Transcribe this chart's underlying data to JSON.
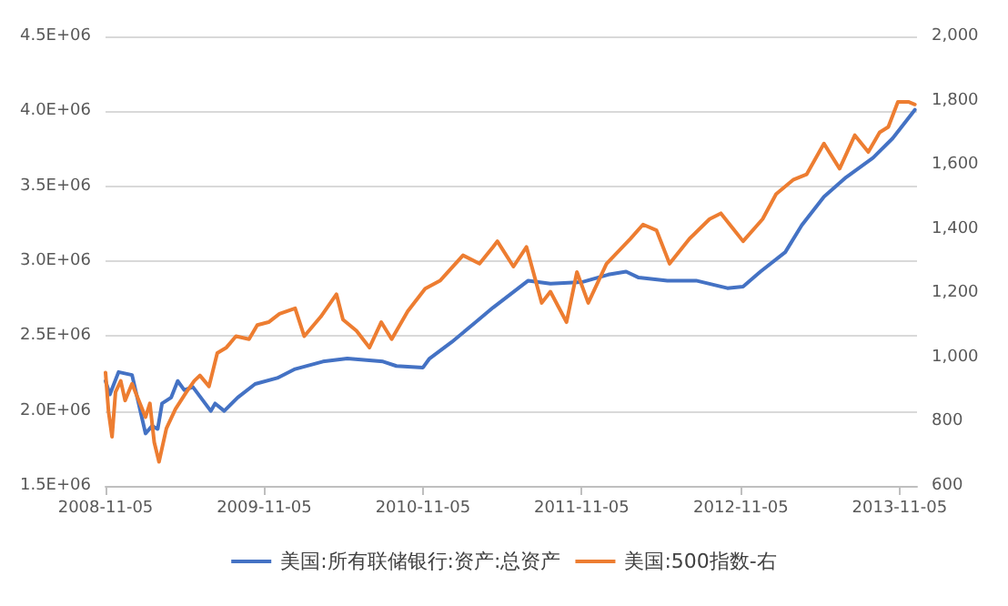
{
  "chart_data": {
    "type": "line",
    "xlim": [
      "2008-11-05",
      "2013-12-15"
    ],
    "xticks": [
      "2008-11-05",
      "2009-11-05",
      "2010-11-05",
      "2011-11-05",
      "2012-11-05",
      "2013-11-05"
    ],
    "ylim": [
      1500000,
      4500000
    ],
    "yticks": [
      {
        "value": 1500000,
        "label": "1.5E+06"
      },
      {
        "value": 2000000,
        "label": "2.0E+06"
      },
      {
        "value": 2500000,
        "label": "2.5E+06"
      },
      {
        "value": 3000000,
        "label": "3.0E+06"
      },
      {
        "value": 3500000,
        "label": "3.5E+06"
      },
      {
        "value": 4000000,
        "label": "4.0E+06"
      },
      {
        "value": 4500000,
        "label": "4.5E+06"
      }
    ],
    "y2lim": [
      600,
      2000
    ],
    "y2ticks": [
      600,
      800,
      {
        "value": 1000,
        "label": "1,000"
      },
      {
        "value": 1200,
        "label": "1,200"
      },
      {
        "value": 1400,
        "label": "1,400"
      },
      {
        "value": 1600,
        "label": "1,600"
      },
      {
        "value": 1800,
        "label": "1,800"
      },
      {
        "value": 2000,
        "label": "2,000"
      }
    ],
    "grid": "y",
    "legend": "bottom",
    "marker": "none",
    "line_style": "solid",
    "series": [
      {
        "name": "美国:所有联储银行:资产:总资产",
        "color": "#4472c4",
        "x": [
          "2008-11-05",
          "2008-11-15",
          "2008-12-05",
          "2009-01-05",
          "2009-02-05",
          "2009-02-20",
          "2009-03-05",
          "2009-03-15",
          "2009-04-05",
          "2009-04-20",
          "2009-05-05",
          "2009-05-25",
          "2009-07-05",
          "2009-07-15",
          "2009-08-05",
          "2009-09-05",
          "2009-10-15",
          "2009-12-05",
          "2010-01-15",
          "2010-03-20",
          "2010-05-15",
          "2010-08-05",
          "2010-09-05",
          "2010-11-05",
          "2010-11-20",
          "2011-01-10",
          "2011-03-05",
          "2011-04-15",
          "2011-07-05",
          "2011-08-25",
          "2011-11-05",
          "2012-01-05",
          "2012-02-15",
          "2012-03-15",
          "2012-05-20",
          "2012-07-25",
          "2012-10-05",
          "2012-11-10",
          "2012-12-20",
          "2013-02-15",
          "2013-03-25",
          "2013-05-15",
          "2013-07-05",
          "2013-09-05",
          "2013-10-20",
          "2013-12-10"
        ],
        "values": [
          2200000,
          2110000,
          2260000,
          2240000,
          1850000,
          1900000,
          1880000,
          2050000,
          2090000,
          2200000,
          2140000,
          2160000,
          2000000,
          2050000,
          2000000,
          2090000,
          2180000,
          2220000,
          2280000,
          2330000,
          2350000,
          2330000,
          2300000,
          2290000,
          2350000,
          2460000,
          2590000,
          2690000,
          2870000,
          2850000,
          2860000,
          2910000,
          2930000,
          2890000,
          2870000,
          2870000,
          2820000,
          2830000,
          2930000,
          3060000,
          3240000,
          3430000,
          3560000,
          3690000,
          3820000,
          4010000
        ]
      },
      {
        "name": "美国:500指数-右",
        "color": "#ed7d31",
        "axis": "y2",
        "x": [
          "2008-11-05",
          "2008-11-12",
          "2008-11-20",
          "2008-11-28",
          "2008-12-10",
          "2008-12-20",
          "2009-01-05",
          "2009-02-05",
          "2009-02-15",
          "2009-02-25",
          "2009-03-08",
          "2009-03-25",
          "2009-04-15",
          "2009-05-10",
          "2009-05-28",
          "2009-06-10",
          "2009-07-01",
          "2009-07-20",
          "2009-08-10",
          "2009-09-01",
          "2009-10-01",
          "2009-10-20",
          "2009-11-15",
          "2009-12-10",
          "2010-01-15",
          "2010-02-05",
          "2010-03-15",
          "2010-04-20",
          "2010-05-05",
          "2010-06-05",
          "2010-07-05",
          "2010-08-01",
          "2010-08-25",
          "2010-10-01",
          "2010-11-10",
          "2010-12-15",
          "2011-02-05",
          "2011-03-15",
          "2011-04-15",
          "2011-04-25",
          "2011-06-01",
          "2011-07-01",
          "2011-08-05",
          "2011-08-25",
          "2011-10-01",
          "2011-10-25",
          "2011-11-20",
          "2012-01-01",
          "2012-02-25",
          "2012-03-25",
          "2012-04-25",
          "2012-05-25",
          "2012-07-10",
          "2012-08-25",
          "2012-09-20",
          "2012-11-10",
          "2012-12-25",
          "2013-01-25",
          "2013-03-05",
          "2013-04-05",
          "2013-05-15",
          "2013-06-20",
          "2013-07-25",
          "2013-08-25",
          "2013-09-20",
          "2013-10-10",
          "2013-11-01",
          "2013-11-25",
          "2013-12-10"
        ],
        "values": [
          953,
          831,
          753,
          892,
          927,
          866,
          918,
          814,
          857,
          736,
          675,
          779,
          840,
          892,
          927,
          944,
          910,
          1014,
          1031,
          1066,
          1057,
          1101,
          1110,
          1136,
          1153,
          1066,
          1127,
          1197,
          1118,
          1083,
          1031,
          1110,
          1057,
          1144,
          1214,
          1240,
          1318,
          1292,
          1344,
          1362,
          1283,
          1344,
          1170,
          1205,
          1110,
          1266,
          1170,
          1292,
          1370,
          1414,
          1396,
          1292,
          1370,
          1431,
          1449,
          1362,
          1431,
          1509,
          1553,
          1570,
          1666,
          1588,
          1692,
          1640,
          1701,
          1718,
          1796,
          1796,
          1788
        ]
      }
    ]
  }
}
